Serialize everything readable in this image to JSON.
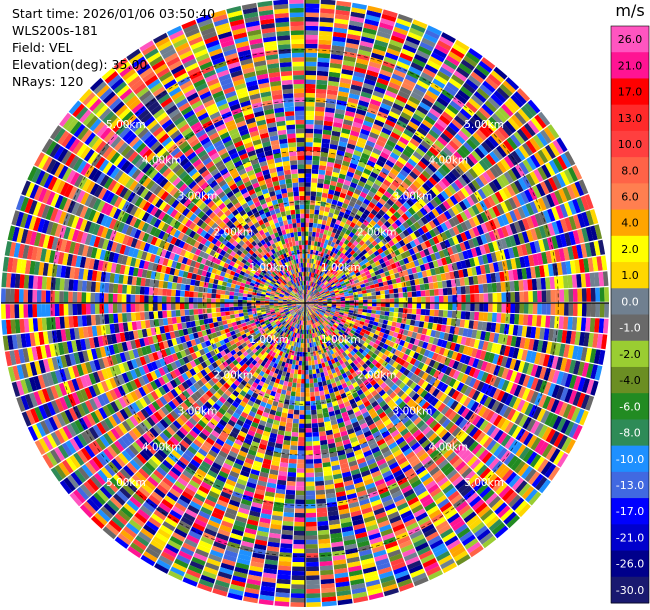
{
  "header": {
    "start_time": "Start time: 2026/01/06 03:50:40",
    "site": "WLS200s-181",
    "field": "Field: VEL",
    "elevation": "Elevation(deg): 35.00",
    "nrays": "NRays: 120"
  },
  "chart_data": {
    "type": "heatmap",
    "projection": "polar-ppi",
    "field": "VEL",
    "rays": 120,
    "range_max_km": 6.0,
    "range_rings": [
      {
        "range_km": 1.0,
        "label": "1.00km"
      },
      {
        "range_km": 2.0,
        "label": "2.00km"
      },
      {
        "range_km": 3.0,
        "label": "3.00km"
      },
      {
        "range_km": 4.0,
        "label": "4.00km"
      },
      {
        "range_km": 5.0,
        "label": "5.00km"
      }
    ],
    "colorbar": {
      "unit": "m/s",
      "ticks": [
        "26.0",
        "21.0",
        "17.0",
        "13.0",
        "10.0",
        "8.0",
        "6.0",
        "4.0",
        "2.0",
        "1.0",
        "0.0",
        "-1.0",
        "-2.0",
        "-4.0",
        "-6.0",
        "-8.0",
        "-10.0",
        "-13.0",
        "-17.0",
        "-21.0",
        "-26.0",
        "-30.0"
      ],
      "colors": [
        "#ff55c0",
        "#ff1493",
        "#ff0000",
        "#ff2a2a",
        "#ff3f3f",
        "#ff6347",
        "#ff7f50",
        "#ffa500",
        "#ffff00",
        "#ffd700",
        "#708090",
        "#696969",
        "#9acd32",
        "#6b8e23",
        "#228b22",
        "#2e8b57",
        "#1e90ff",
        "#4169e1",
        "#0000ff",
        "#0000cd",
        "#00008b",
        "#191970"
      ]
    },
    "palette": [
      "#ff1493",
      "#ff55c0",
      "#ff0000",
      "#ff3f3f",
      "#ff6347",
      "#ff7f50",
      "#ffa500",
      "#ffff00",
      "#ffd700",
      "#708090",
      "#696969",
      "#9acd32",
      "#6b8e23",
      "#228b22",
      "#2e8b57",
      "#1e90ff",
      "#4169e1",
      "#0000ff",
      "#0000cd",
      "#00008b",
      "#191970"
    ]
  }
}
